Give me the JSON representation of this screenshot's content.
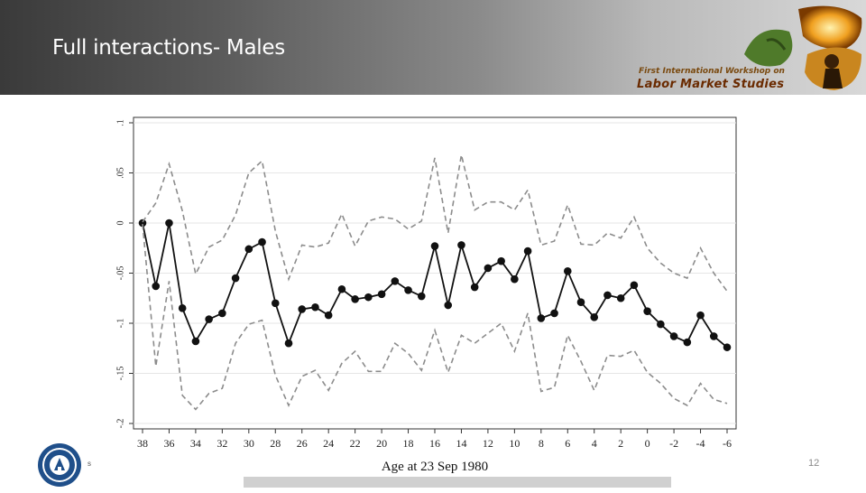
{
  "slide": {
    "title": "Full interactions- Males",
    "page_number": "12",
    "footer_mark": "s"
  },
  "logo": {
    "line1": "First International Workshop on",
    "line2": "Labor Market Studies"
  },
  "colors": {
    "accent_header": "#4a4a4a",
    "series": "#111111",
    "ci": "#8c8c8c"
  },
  "chart_data": {
    "type": "line",
    "title": "",
    "xlabel": "Age at 23 Sep 1980",
    "ylabel": "",
    "x": [
      38,
      37,
      36,
      35,
      34,
      33,
      32,
      31,
      30,
      29,
      28,
      27,
      26,
      25,
      24,
      23,
      22,
      21,
      20,
      19,
      18,
      17,
      16,
      15,
      14,
      13,
      12,
      11,
      10,
      9,
      8,
      7,
      6,
      5,
      4,
      3,
      2,
      1,
      0,
      -1,
      -2,
      -3,
      -4,
      -5,
      -6
    ],
    "x_reversed": true,
    "x_ticks": [
      "38",
      "36",
      "34",
      "32",
      "30",
      "28",
      "26",
      "24",
      "22",
      "20",
      "18",
      "16",
      "14",
      "12",
      "10",
      "8",
      "6",
      "4",
      "2",
      "0",
      "-2",
      "-4",
      "-6"
    ],
    "y_ticks": [
      ".1",
      ".05",
      "0",
      "-.05",
      "-.1",
      "-.15",
      "-.2"
    ],
    "ylim": [
      -0.2,
      0.1
    ],
    "grid": true,
    "series": [
      {
        "style": "solid-markers",
        "values": [
          0.0,
          -0.063,
          0.0,
          -0.085,
          -0.118,
          -0.096,
          -0.09,
          -0.055,
          -0.026,
          -0.019,
          -0.08,
          -0.12,
          -0.086,
          -0.084,
          -0.092,
          -0.066,
          -0.076,
          -0.074,
          -0.071,
          -0.058,
          -0.067,
          -0.073,
          -0.023,
          -0.082,
          -0.022,
          -0.064,
          -0.045,
          -0.038,
          -0.056,
          -0.028,
          -0.095,
          -0.09,
          -0.048,
          -0.079,
          -0.094,
          -0.072,
          -0.075,
          -0.062,
          -0.088,
          -0.101,
          -0.113,
          -0.119,
          -0.092,
          -0.113,
          -0.124
        ]
      },
      {
        "style": "dashed",
        "values": [
          0.001,
          0.02,
          0.059,
          0.012,
          -0.051,
          -0.024,
          -0.017,
          0.008,
          0.05,
          0.062,
          -0.008,
          -0.056,
          -0.022,
          -0.024,
          -0.02,
          0.009,
          -0.023,
          0.002,
          0.006,
          0.004,
          -0.006,
          0.002,
          0.065,
          -0.01,
          0.068,
          0.013,
          0.021,
          0.021,
          0.013,
          0.033,
          -0.022,
          -0.018,
          0.018,
          -0.021,
          -0.022,
          -0.01,
          -0.015,
          0.006,
          -0.025,
          -0.04,
          -0.05,
          -0.055,
          -0.025,
          -0.05,
          -0.068
        ]
      },
      {
        "style": "dashed",
        "values": [
          -0.001,
          -0.143,
          -0.058,
          -0.172,
          -0.186,
          -0.17,
          -0.165,
          -0.12,
          -0.101,
          -0.097,
          -0.152,
          -0.182,
          -0.153,
          -0.147,
          -0.167,
          -0.14,
          -0.128,
          -0.148,
          -0.148,
          -0.12,
          -0.13,
          -0.147,
          -0.107,
          -0.149,
          -0.112,
          -0.12,
          -0.11,
          -0.1,
          -0.128,
          -0.09,
          -0.168,
          -0.164,
          -0.112,
          -0.138,
          -0.167,
          -0.132,
          -0.133,
          -0.127,
          -0.149,
          -0.16,
          -0.175,
          -0.182,
          -0.16,
          -0.176,
          -0.18
        ]
      }
    ]
  }
}
